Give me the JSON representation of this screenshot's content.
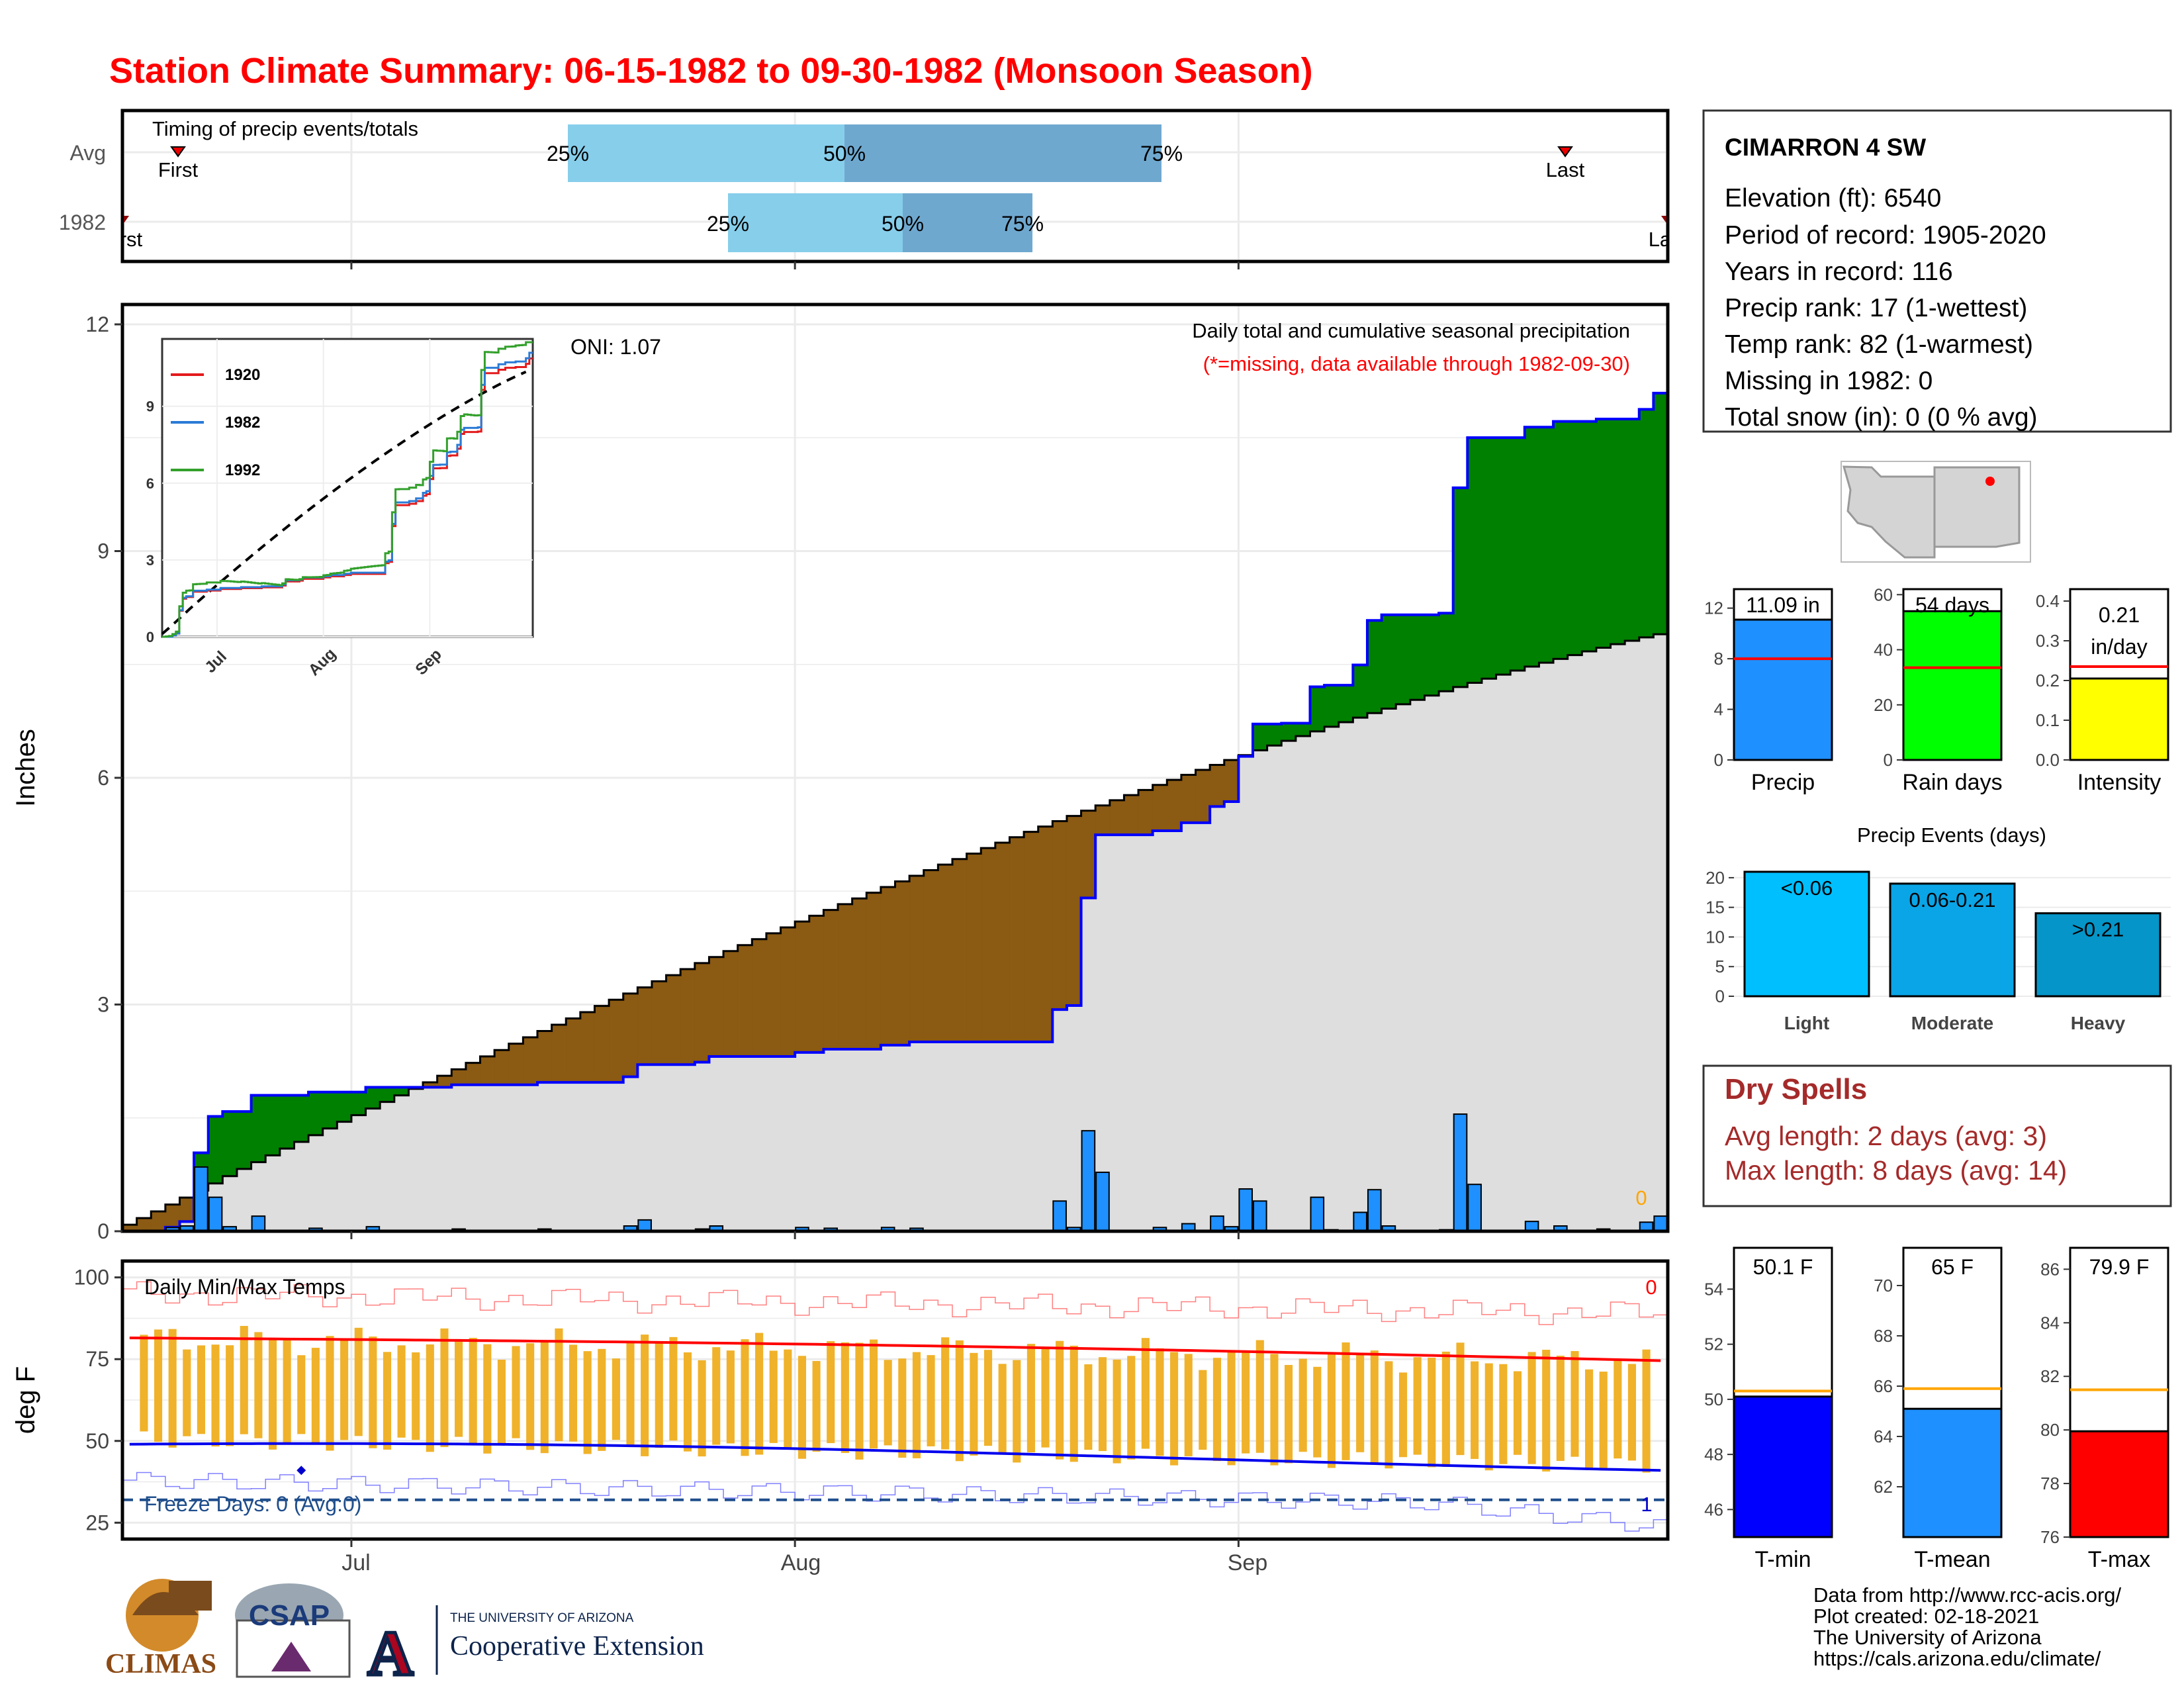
{
  "title": "Station Climate Summary: 06-15-1982 to 09-30-1982 (Monsoon Season)",
  "timing": {
    "label": "Timing of precip events/totals",
    "rows": [
      "Avg",
      "1982"
    ],
    "avg": {
      "first_label": "First",
      "last_label": "Last",
      "p25": "25%",
      "p50": "50%",
      "p75": "75%"
    },
    "yr": {
      "first_label": "First",
      "last_label": "Last",
      "p25": "25%",
      "p50": "50%",
      "p75": "75%"
    }
  },
  "precip_panel": {
    "ylabel": "Inches",
    "oni": "ONI: 1.07",
    "subtitle": "Daily total and cumulative seasonal precipitation",
    "missing_note": "(*=missing, data available through 1982-09-30)",
    "missing_count": "0"
  },
  "inset": {
    "legend": [
      "1920",
      "1982",
      "1992"
    ],
    "colors": [
      "#e31a1c",
      "#2b7bd6",
      "#33a02c"
    ],
    "yticks": [
      "0",
      "3",
      "6",
      "9"
    ],
    "xticks": [
      "Jul",
      "Aug",
      "Sep"
    ]
  },
  "temp_panel": {
    "ylabel": "deg F",
    "title": "Daily Min/Max Temps",
    "freeze": "Freeze Days: 0 (Avg:0)",
    "top_count": "0",
    "bottom_count": "1",
    "yticks": [
      "25",
      "50",
      "75",
      "100"
    ]
  },
  "x_axis": {
    "labels": [
      "Jul",
      "Aug",
      "Sep"
    ]
  },
  "station": {
    "name": "CIMARRON 4 SW",
    "lines": [
      "Elevation (ft): 6540",
      "Period of record: 1905-2020",
      "Years in record: 116",
      "Precip rank: 17 (1-wettest)",
      "Temp rank: 82 (1-warmest)",
      "Missing in 1982: 0",
      "Total snow (in): 0 (0 % avg)"
    ]
  },
  "summary_bars": [
    {
      "label": "Precip",
      "value_text": "11.09 in",
      "value": 11.09,
      "avg": 8.0,
      "max": 13.5,
      "ticks": [
        "0",
        "4",
        "8",
        "12"
      ],
      "color": "#1e90ff"
    },
    {
      "label": "Rain days",
      "value_text": "54 days",
      "value": 54,
      "avg": 33.5,
      "max": 62,
      "ticks": [
        "0",
        "20",
        "40",
        "60"
      ],
      "color": "#00ff00"
    },
    {
      "label": "Intensity",
      "value_text": "0.21 in/day",
      "value": 0.205,
      "avg": 0.235,
      "max": 0.43,
      "ticks": [
        "0.0",
        "0.1",
        "0.2",
        "0.3",
        "0.4"
      ],
      "color": "#ffff00"
    }
  ],
  "events": {
    "title": "Precip Events (days)",
    "categories": [
      "Light",
      "Moderate",
      "Heavy"
    ],
    "bar_labels": [
      "<0.06",
      "0.06-0.21",
      ">0.21"
    ],
    "values": [
      21,
      19,
      14
    ],
    "colors": [
      "#00bfff",
      "#0aa5e6",
      "#0595c8"
    ],
    "yticks": [
      "0",
      "5",
      "10",
      "15",
      "20"
    ]
  },
  "dry_spells": {
    "title": "Dry Spells",
    "avg_line": "Avg length: 2 days (avg: 3)",
    "max_line": "Max length: 8 days (avg: 14)"
  },
  "temp_bars": [
    {
      "label": "T-min",
      "value_text": "50.1 F",
      "value": 50.1,
      "avg": 50.3,
      "range": [
        45,
        55.5
      ],
      "ticks": [
        "46",
        "48",
        "50",
        "52",
        "54"
      ],
      "color": "#0000ff"
    },
    {
      "label": "T-mean",
      "value_text": "65 F",
      "value": 65.1,
      "avg": 65.9,
      "range": [
        60,
        71.5
      ],
      "ticks": [
        "62",
        "64",
        "66",
        "68",
        "70"
      ],
      "color": "#1e90ff"
    },
    {
      "label": "T-max",
      "value_text": "79.9 F",
      "value": 79.95,
      "avg": 81.5,
      "range": [
        76,
        86.8
      ],
      "ticks": [
        "76",
        "78",
        "80",
        "82",
        "84",
        "86"
      ],
      "color": "#ff0000"
    }
  ],
  "footer": {
    "lines": [
      "Data from http://www.rcc-acis.org/",
      "Plot created: 02-18-2021",
      "The University of Arizona",
      "https://cals.arizona.edu/climate/"
    ],
    "logo_climas": "CLIMAS",
    "logo_csap": "CSAP",
    "ua_small": "THE UNIVERSITY OF ARIZONA",
    "ua_big": "Cooperative Extension"
  },
  "chart_data": {
    "type": "bar",
    "x_start": "1982-06-15",
    "x_end": "1982-09-30",
    "daily_precip": [
      {
        "date": "1982-06-18",
        "value": 0.05
      },
      {
        "date": "1982-06-19",
        "value": 0.07
      },
      {
        "date": "1982-06-20",
        "value": 0.85
      },
      {
        "date": "1982-06-21",
        "value": 0.45
      },
      {
        "date": "1982-06-22",
        "value": 0.06
      },
      {
        "date": "1982-06-24",
        "value": 0.2
      },
      {
        "date": "1982-06-28",
        "value": 0.04
      },
      {
        "date": "1982-07-02",
        "value": 0.06
      },
      {
        "date": "1982-07-08",
        "value": 0.03
      },
      {
        "date": "1982-07-14",
        "value": 0.03
      },
      {
        "date": "1982-07-20",
        "value": 0.07
      },
      {
        "date": "1982-07-21",
        "value": 0.15
      },
      {
        "date": "1982-07-25",
        "value": 0.03
      },
      {
        "date": "1982-07-26",
        "value": 0.07
      },
      {
        "date": "1982-08-01",
        "value": 0.05
      },
      {
        "date": "1982-08-03",
        "value": 0.04
      },
      {
        "date": "1982-08-07",
        "value": 0.05
      },
      {
        "date": "1982-08-09",
        "value": 0.04
      },
      {
        "date": "1982-08-19",
        "value": 0.4
      },
      {
        "date": "1982-08-20",
        "value": 0.05
      },
      {
        "date": "1982-08-21",
        "value": 1.33
      },
      {
        "date": "1982-08-22",
        "value": 0.78
      },
      {
        "date": "1982-08-26",
        "value": 0.05
      },
      {
        "date": "1982-08-28",
        "value": 0.1
      },
      {
        "date": "1982-08-30",
        "value": 0.2
      },
      {
        "date": "1982-08-31",
        "value": 0.06
      },
      {
        "date": "1982-09-01",
        "value": 0.56
      },
      {
        "date": "1982-09-02",
        "value": 0.4
      },
      {
        "date": "1982-09-04",
        "value": 0.01
      },
      {
        "date": "1982-09-06",
        "value": 0.45
      },
      {
        "date": "1982-09-07",
        "value": 0.02
      },
      {
        "date": "1982-09-09",
        "value": 0.25
      },
      {
        "date": "1982-09-10",
        "value": 0.55
      },
      {
        "date": "1982-09-11",
        "value": 0.07
      },
      {
        "date": "1982-09-15",
        "value": 0.02
      },
      {
        "date": "1982-09-16",
        "value": 1.55
      },
      {
        "date": "1982-09-17",
        "value": 0.62
      },
      {
        "date": "1982-09-21",
        "value": 0.13
      },
      {
        "date": "1982-09-23",
        "value": 0.07
      },
      {
        "date": "1982-09-26",
        "value": 0.03
      },
      {
        "date": "1982-09-29",
        "value": 0.12
      },
      {
        "date": "1982-09-30",
        "value": 0.2
      }
    ],
    "cumulative_total_in": 11.09,
    "avg_cumulative_end_in": 7.9,
    "ylim": [
      0,
      12
    ],
    "temps": {
      "avg_max_start": 81.5,
      "avg_max_end": 74.5,
      "avg_min_start": 49.0,
      "avg_min_end": 41.0,
      "freeze_line": 32,
      "ylim": [
        20,
        105
      ]
    }
  }
}
